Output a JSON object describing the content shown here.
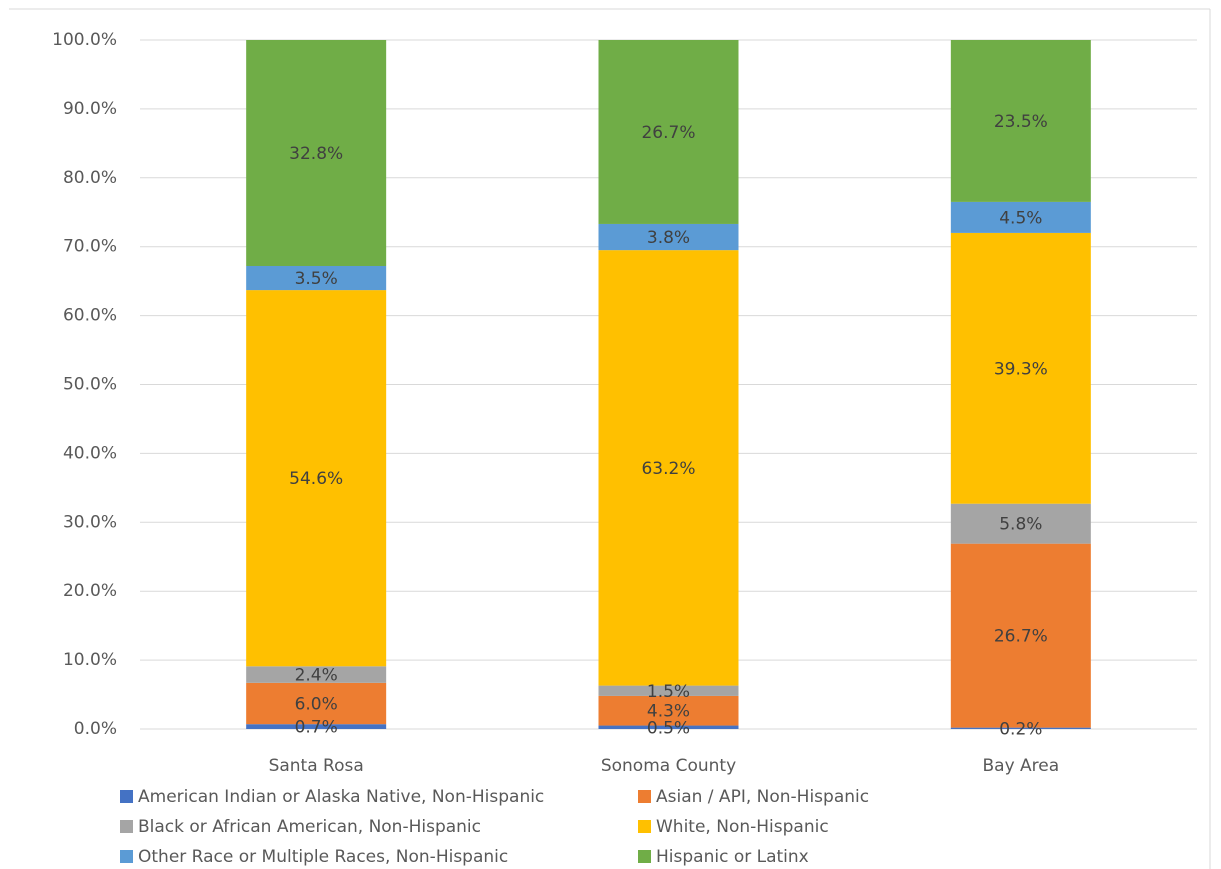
{
  "chart_data": {
    "type": "stacked_bar",
    "categories": [
      "Santa Rosa",
      "Sonoma County",
      "Bay Area"
    ],
    "series": [
      {
        "name": "American Indian or Alaska Native, Non-Hispanic",
        "color": "#4472c4",
        "values": [
          0.7,
          0.5,
          0.2
        ],
        "value_labels": [
          "0.7%",
          "0.5%",
          "0.2%"
        ]
      },
      {
        "name": "Asian / API, Non-Hispanic",
        "color": "#ed7d31",
        "values": [
          6.0,
          4.3,
          26.7
        ],
        "value_labels": [
          "6.0%",
          "4.3%",
          "26.7%"
        ]
      },
      {
        "name": "Black or African American, Non-Hispanic",
        "color": "#a5a5a5",
        "values": [
          2.4,
          1.5,
          5.8
        ],
        "value_labels": [
          "2.4%",
          "1.5%",
          "5.8%"
        ]
      },
      {
        "name": "White, Non-Hispanic",
        "color": "#ffc000",
        "values": [
          54.6,
          63.2,
          39.3
        ],
        "value_labels": [
          "54.6%",
          "63.2%",
          "39.3%"
        ]
      },
      {
        "name": "Other Race or Multiple Races, Non-Hispanic",
        "color": "#5b9bd5",
        "values": [
          3.5,
          3.8,
          4.5
        ],
        "value_labels": [
          "3.5%",
          "3.8%",
          "4.5%"
        ]
      },
      {
        "name": "Hispanic or Latinx",
        "color": "#70ad47",
        "values": [
          32.8,
          26.7,
          23.5
        ],
        "value_labels": [
          "32.8%",
          "26.7%",
          "23.5%"
        ]
      }
    ],
    "ylim": [
      0,
      100
    ],
    "yticks": [
      {
        "value": 0,
        "label": "0.0%"
      },
      {
        "value": 10,
        "label": "10.0%"
      },
      {
        "value": 20,
        "label": "20.0%"
      },
      {
        "value": 30,
        "label": "30.0%"
      },
      {
        "value": 40,
        "label": "40.0%"
      },
      {
        "value": 50,
        "label": "50.0%"
      },
      {
        "value": 60,
        "label": "60.0%"
      },
      {
        "value": 70,
        "label": "70.0%"
      },
      {
        "value": 80,
        "label": "80.0%"
      },
      {
        "value": 90,
        "label": "90.0%"
      },
      {
        "value": 100,
        "label": "100.0%"
      }
    ],
    "grid": true,
    "legend": "bottom"
  }
}
